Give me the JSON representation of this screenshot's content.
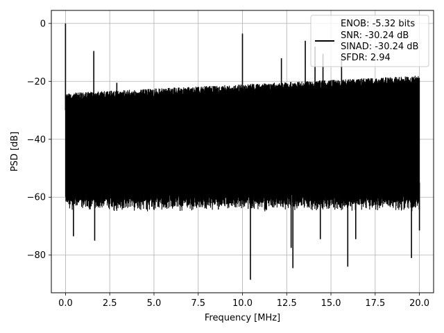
{
  "chart_data": {
    "type": "line",
    "title": "",
    "xlabel": "Frequency [MHz]",
    "ylabel": "PSD [dB]",
    "xlim": [
      -0.8,
      20.8
    ],
    "ylim": [
      -93,
      4.5
    ],
    "xticks": [
      0.0,
      2.5,
      5.0,
      7.5,
      10.0,
      12.5,
      15.0,
      17.5,
      20.0
    ],
    "xtick_labels": [
      "0.0",
      "2.5",
      "5.0",
      "7.5",
      "10.0",
      "12.5",
      "15.0",
      "17.5",
      "20.0"
    ],
    "yticks": [
      0,
      -20,
      -40,
      -60,
      -80
    ],
    "ytick_labels": [
      "0",
      "−20",
      "−40",
      "−60",
      "−80"
    ],
    "grid": true,
    "legend_position": "top-right",
    "legend_entries": [
      "ENOB: -5.32 bits",
      "SNR: -30.24 dB",
      "SINAD: -30.24 dB",
      "SFDR: 2.94"
    ],
    "series_color": "#000000",
    "noise_floor": {
      "x_range": [
        0.0,
        20.0
      ],
      "upper_db_start": -24,
      "upper_db_end": -18,
      "lower_db_typical": -63
    },
    "spikes": [
      {
        "x": 0.0,
        "y": 0.0
      },
      {
        "x": 1.6,
        "y": -9.5
      },
      {
        "x": 2.9,
        "y": -20.5
      },
      {
        "x": 10.0,
        "y": -3.5
      },
      {
        "x": 13.55,
        "y": -6.0
      },
      {
        "x": 14.1,
        "y": -8.0
      },
      {
        "x": 14.55,
        "y": -10.5
      },
      {
        "x": 15.6,
        "y": -11.5
      },
      {
        "x": 12.2,
        "y": -12.0
      }
    ],
    "dips": [
      {
        "x": 0.45,
        "y": -73.5
      },
      {
        "x": 1.65,
        "y": -75.0
      },
      {
        "x": 10.45,
        "y": -88.5
      },
      {
        "x": 12.75,
        "y": -77.5
      },
      {
        "x": 12.85,
        "y": -84.5
      },
      {
        "x": 14.4,
        "y": -74.5
      },
      {
        "x": 15.95,
        "y": -84.0
      },
      {
        "x": 16.4,
        "y": -74.5
      },
      {
        "x": 19.55,
        "y": -81.0
      },
      {
        "x": 20.0,
        "y": -71.5
      }
    ]
  }
}
